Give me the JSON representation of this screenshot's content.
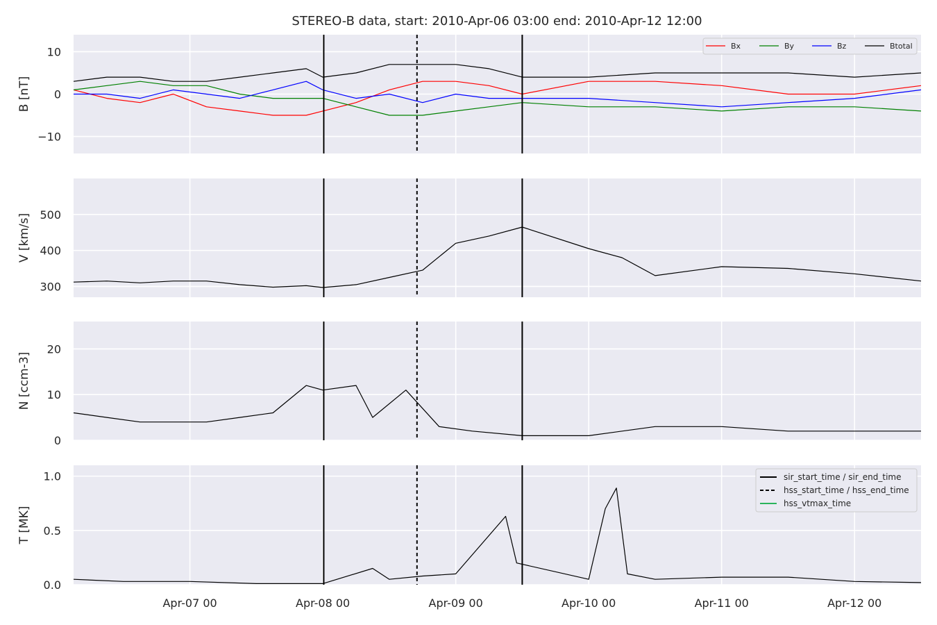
{
  "chart_data": {
    "type": "line",
    "title": "STEREO-B data, start: 2010-Apr-06 03:00  end: 2010-Apr-12 12:00",
    "x_range": [
      "2010-04-06 03:00",
      "2010-04-12 12:00"
    ],
    "x_ticks": [
      {
        "t": "2010-04-07 00:00",
        "label": "Apr-07 00"
      },
      {
        "t": "2010-04-08 00:00",
        "label": "Apr-08 00"
      },
      {
        "t": "2010-04-09 00:00",
        "label": "Apr-09 00"
      },
      {
        "t": "2010-04-10 00:00",
        "label": "Apr-10 00"
      },
      {
        "t": "2010-04-11 00:00",
        "label": "Apr-11 00"
      },
      {
        "t": "2010-04-12 00:00",
        "label": "Apr-12 00"
      }
    ],
    "event_lines": {
      "sir_start_time": "2010-04-08 00:10",
      "hss_start_time": "2010-04-08 17:00",
      "sir_end_time": "2010-04-09 12:00"
    },
    "colors": {
      "Bx": "#ff0000",
      "By": "#008000",
      "Bz": "#0000ff",
      "Btotal": "#000000",
      "hss_vtmax": "#2ab35b"
    },
    "panels": [
      {
        "id": "B",
        "ylabel": "B [nT]",
        "ylim": [
          -14,
          14
        ],
        "yticks": [
          -10,
          0,
          10
        ],
        "ytick_labels": [
          "−10",
          "0",
          "10"
        ],
        "legend": {
          "position": "top-right",
          "entries": [
            "Bx",
            "By",
            "Bz",
            "Btotal"
          ]
        },
        "series": [
          {
            "name": "Bx",
            "key": "Bx",
            "points": [
              [
                "2010-04-06 03:00",
                1
              ],
              [
                "2010-04-06 09:00",
                -1
              ],
              [
                "2010-04-06 15:00",
                -2
              ],
              [
                "2010-04-06 21:00",
                0
              ],
              [
                "2010-04-07 03:00",
                -3
              ],
              [
                "2010-04-07 09:00",
                -4
              ],
              [
                "2010-04-07 15:00",
                -5
              ],
              [
                "2010-04-07 21:00",
                -5
              ],
              [
                "2010-04-08 00:00",
                -4
              ],
              [
                "2010-04-08 06:00",
                -2
              ],
              [
                "2010-04-08 12:00",
                1
              ],
              [
                "2010-04-08 18:00",
                3
              ],
              [
                "2010-04-09 00:00",
                3
              ],
              [
                "2010-04-09 06:00",
                2
              ],
              [
                "2010-04-09 12:00",
                0
              ],
              [
                "2010-04-10 00:00",
                3
              ],
              [
                "2010-04-10 12:00",
                3
              ],
              [
                "2010-04-11 00:00",
                2
              ],
              [
                "2010-04-11 12:00",
                0
              ],
              [
                "2010-04-12 00:00",
                0
              ],
              [
                "2010-04-12 12:00",
                2
              ]
            ]
          },
          {
            "name": "By",
            "key": "By",
            "points": [
              [
                "2010-04-06 03:00",
                1
              ],
              [
                "2010-04-06 09:00",
                2
              ],
              [
                "2010-04-06 15:00",
                3
              ],
              [
                "2010-04-06 21:00",
                2
              ],
              [
                "2010-04-07 03:00",
                2
              ],
              [
                "2010-04-07 09:00",
                0
              ],
              [
                "2010-04-07 15:00",
                -1
              ],
              [
                "2010-04-07 21:00",
                -1
              ],
              [
                "2010-04-08 00:00",
                -1
              ],
              [
                "2010-04-08 06:00",
                -3
              ],
              [
                "2010-04-08 12:00",
                -5
              ],
              [
                "2010-04-08 18:00",
                -5
              ],
              [
                "2010-04-09 00:00",
                -4
              ],
              [
                "2010-04-09 06:00",
                -3
              ],
              [
                "2010-04-09 12:00",
                -2
              ],
              [
                "2010-04-10 00:00",
                -3
              ],
              [
                "2010-04-10 12:00",
                -3
              ],
              [
                "2010-04-11 00:00",
                -4
              ],
              [
                "2010-04-11 12:00",
                -3
              ],
              [
                "2010-04-12 00:00",
                -3
              ],
              [
                "2010-04-12 12:00",
                -4
              ]
            ]
          },
          {
            "name": "Bz",
            "key": "Bz",
            "points": [
              [
                "2010-04-06 03:00",
                0
              ],
              [
                "2010-04-06 09:00",
                0
              ],
              [
                "2010-04-06 15:00",
                -1
              ],
              [
                "2010-04-06 21:00",
                1
              ],
              [
                "2010-04-07 03:00",
                0
              ],
              [
                "2010-04-07 09:00",
                -1
              ],
              [
                "2010-04-07 15:00",
                1
              ],
              [
                "2010-04-07 21:00",
                3
              ],
              [
                "2010-04-08 00:00",
                1
              ],
              [
                "2010-04-08 06:00",
                -1
              ],
              [
                "2010-04-08 12:00",
                0
              ],
              [
                "2010-04-08 18:00",
                -2
              ],
              [
                "2010-04-09 00:00",
                0
              ],
              [
                "2010-04-09 06:00",
                -1
              ],
              [
                "2010-04-09 12:00",
                -1
              ],
              [
                "2010-04-10 00:00",
                -1
              ],
              [
                "2010-04-10 12:00",
                -2
              ],
              [
                "2010-04-11 00:00",
                -3
              ],
              [
                "2010-04-11 12:00",
                -2
              ],
              [
                "2010-04-12 00:00",
                -1
              ],
              [
                "2010-04-12 12:00",
                1
              ]
            ]
          },
          {
            "name": "Btotal",
            "key": "Btotal",
            "points": [
              [
                "2010-04-06 03:00",
                3
              ],
              [
                "2010-04-06 09:00",
                4
              ],
              [
                "2010-04-06 15:00",
                4
              ],
              [
                "2010-04-06 21:00",
                3
              ],
              [
                "2010-04-07 03:00",
                3
              ],
              [
                "2010-04-07 09:00",
                4
              ],
              [
                "2010-04-07 15:00",
                5
              ],
              [
                "2010-04-07 21:00",
                6
              ],
              [
                "2010-04-08 00:00",
                4
              ],
              [
                "2010-04-08 06:00",
                5
              ],
              [
                "2010-04-08 12:00",
                7
              ],
              [
                "2010-04-08 18:00",
                7
              ],
              [
                "2010-04-09 00:00",
                7
              ],
              [
                "2010-04-09 06:00",
                6
              ],
              [
                "2010-04-09 12:00",
                4
              ],
              [
                "2010-04-10 00:00",
                4
              ],
              [
                "2010-04-10 12:00",
                5
              ],
              [
                "2010-04-11 00:00",
                5
              ],
              [
                "2010-04-11 12:00",
                5
              ],
              [
                "2010-04-12 00:00",
                4
              ],
              [
                "2010-04-12 12:00",
                5
              ]
            ]
          }
        ]
      },
      {
        "id": "V",
        "ylabel": "V [km/s]",
        "ylim": [
          270,
          600
        ],
        "yticks": [
          300,
          400,
          500
        ],
        "ytick_labels": [
          "300",
          "400",
          "500"
        ],
        "series": [
          {
            "name": "",
            "key": "Btotal",
            "points": [
              [
                "2010-04-06 03:00",
                312
              ],
              [
                "2010-04-06 09:00",
                315
              ],
              [
                "2010-04-06 15:00",
                310
              ],
              [
                "2010-04-06 21:00",
                315
              ],
              [
                "2010-04-07 03:00",
                315
              ],
              [
                "2010-04-07 09:00",
                305
              ],
              [
                "2010-04-07 15:00",
                298
              ],
              [
                "2010-04-07 21:00",
                302
              ],
              [
                "2010-04-08 00:00",
                297
              ],
              [
                "2010-04-08 06:00",
                305
              ],
              [
                "2010-04-08 12:00",
                325
              ],
              [
                "2010-04-08 18:00",
                345
              ],
              [
                "2010-04-09 00:00",
                420
              ],
              [
                "2010-04-09 06:00",
                440
              ],
              [
                "2010-04-09 12:00",
                465
              ],
              [
                "2010-04-10 00:00",
                405
              ],
              [
                "2010-04-10 06:00",
                380
              ],
              [
                "2010-04-10 12:00",
                330
              ],
              [
                "2010-04-11 00:00",
                355
              ],
              [
                "2010-04-11 12:00",
                350
              ],
              [
                "2010-04-12 00:00",
                335
              ],
              [
                "2010-04-12 12:00",
                315
              ]
            ]
          }
        ]
      },
      {
        "id": "N",
        "ylabel": "N [ccm-3]",
        "ylim": [
          0,
          26
        ],
        "yticks": [
          0,
          10,
          20
        ],
        "ytick_labels": [
          "0",
          "10",
          "20"
        ],
        "series": [
          {
            "name": "",
            "key": "Btotal",
            "points": [
              [
                "2010-04-06 03:00",
                6
              ],
              [
                "2010-04-06 09:00",
                5
              ],
              [
                "2010-04-06 15:00",
                4
              ],
              [
                "2010-04-06 21:00",
                4
              ],
              [
                "2010-04-07 03:00",
                4
              ],
              [
                "2010-04-07 09:00",
                5
              ],
              [
                "2010-04-07 15:00",
                6
              ],
              [
                "2010-04-07 21:00",
                12
              ],
              [
                "2010-04-08 00:00",
                11
              ],
              [
                "2010-04-08 06:00",
                12
              ],
              [
                "2010-04-08 09:00",
                5
              ],
              [
                "2010-04-08 15:00",
                11
              ],
              [
                "2010-04-08 21:00",
                3
              ],
              [
                "2010-04-09 03:00",
                2
              ],
              [
                "2010-04-09 12:00",
                1
              ],
              [
                "2010-04-10 00:00",
                1
              ],
              [
                "2010-04-10 12:00",
                3
              ],
              [
                "2010-04-11 00:00",
                3
              ],
              [
                "2010-04-11 12:00",
                2
              ],
              [
                "2010-04-12 00:00",
                2
              ],
              [
                "2010-04-12 12:00",
                2
              ]
            ]
          }
        ]
      },
      {
        "id": "T",
        "ylabel": "T [MK]",
        "ylim": [
          0,
          1.1
        ],
        "yticks": [
          0.0,
          0.5,
          1.0
        ],
        "ytick_labels": [
          "0.0",
          "0.5",
          "1.0"
        ],
        "legend": {
          "position": "top-right",
          "entries": [
            "sir_start_time / sir_end_time",
            "hss_start_time / hss_end_time",
            "hss_vtmax_time"
          ]
        },
        "series": [
          {
            "name": "",
            "key": "Btotal",
            "points": [
              [
                "2010-04-06 03:00",
                0.05
              ],
              [
                "2010-04-06 12:00",
                0.03
              ],
              [
                "2010-04-07 00:00",
                0.03
              ],
              [
                "2010-04-07 12:00",
                0.01
              ],
              [
                "2010-04-08 00:00",
                0.01
              ],
              [
                "2010-04-08 09:00",
                0.15
              ],
              [
                "2010-04-08 12:00",
                0.05
              ],
              [
                "2010-04-08 18:00",
                0.08
              ],
              [
                "2010-04-09 00:00",
                0.1
              ],
              [
                "2010-04-09 09:00",
                0.63
              ],
              [
                "2010-04-09 11:00",
                0.2
              ],
              [
                "2010-04-10 00:00",
                0.05
              ],
              [
                "2010-04-10 03:00",
                0.7
              ],
              [
                "2010-04-10 05:00",
                0.89
              ],
              [
                "2010-04-10 07:00",
                0.1
              ],
              [
                "2010-04-10 12:00",
                0.05
              ],
              [
                "2010-04-11 00:00",
                0.07
              ],
              [
                "2010-04-11 12:00",
                0.07
              ],
              [
                "2010-04-12 00:00",
                0.03
              ],
              [
                "2010-04-12 12:00",
                0.02
              ]
            ]
          }
        ]
      }
    ]
  }
}
